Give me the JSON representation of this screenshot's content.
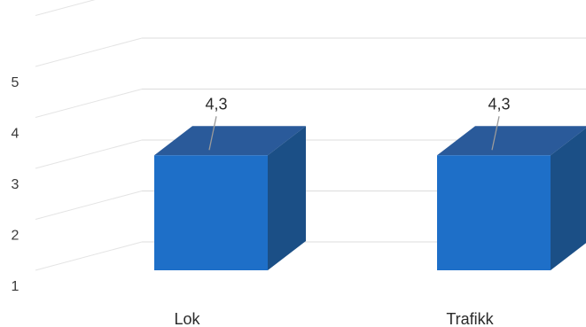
{
  "chart_data": {
    "type": "bar",
    "style": "3d-column",
    "categories": [
      "Lok",
      "Trafikk"
    ],
    "values": [
      4.3,
      4.3
    ],
    "data_labels": [
      "4,3",
      "4,3"
    ],
    "yticks": [
      "1",
      "2",
      "3",
      "4",
      "5"
    ],
    "ylim": [
      1,
      6
    ],
    "grid": true,
    "colors": {
      "front": "#1e6fc8",
      "top": "#2a5a9a",
      "side": "#1b4f86"
    }
  }
}
